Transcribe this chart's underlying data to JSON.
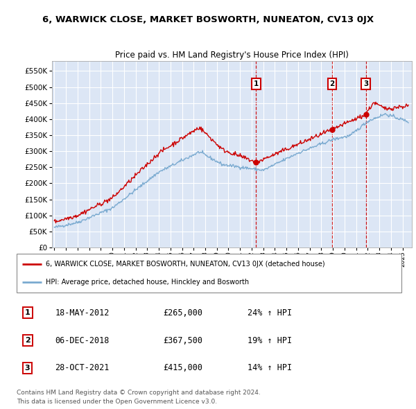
{
  "title": "6, WARWICK CLOSE, MARKET BOSWORTH, NUNEATON, CV13 0JX",
  "subtitle": "Price paid vs. HM Land Registry's House Price Index (HPI)",
  "legend_label_red": "6, WARWICK CLOSE, MARKET BOSWORTH, NUNEATON, CV13 0JX (detached house)",
  "legend_label_blue": "HPI: Average price, detached house, Hinckley and Bosworth",
  "footer1": "Contains HM Land Registry data © Crown copyright and database right 2024.",
  "footer2": "This data is licensed under the Open Government Licence v3.0.",
  "transactions": [
    {
      "num": 1,
      "date": "18-MAY-2012",
      "price": "£265,000",
      "change": "24% ↑ HPI",
      "year": 2012.38
    },
    {
      "num": 2,
      "date": "06-DEC-2018",
      "price": "£367,500",
      "change": "19% ↑ HPI",
      "year": 2018.92
    },
    {
      "num": 3,
      "date": "28-OCT-2021",
      "price": "£415,000",
      "change": "14% ↑ HPI",
      "year": 2021.83
    }
  ],
  "transaction_values": [
    265000,
    367500,
    415000
  ],
  "ylim": [
    0,
    580000
  ],
  "yticks": [
    0,
    50000,
    100000,
    150000,
    200000,
    250000,
    300000,
    350000,
    400000,
    450000,
    500000,
    550000
  ],
  "background_color": "#ffffff",
  "plot_bg_color": "#dce6f5",
  "grid_color": "#ffffff",
  "red_color": "#cc0000",
  "blue_color": "#7aaad0",
  "dashed_line_color": "#cc0000",
  "xlim_left": 1994.8,
  "xlim_right": 2025.8
}
